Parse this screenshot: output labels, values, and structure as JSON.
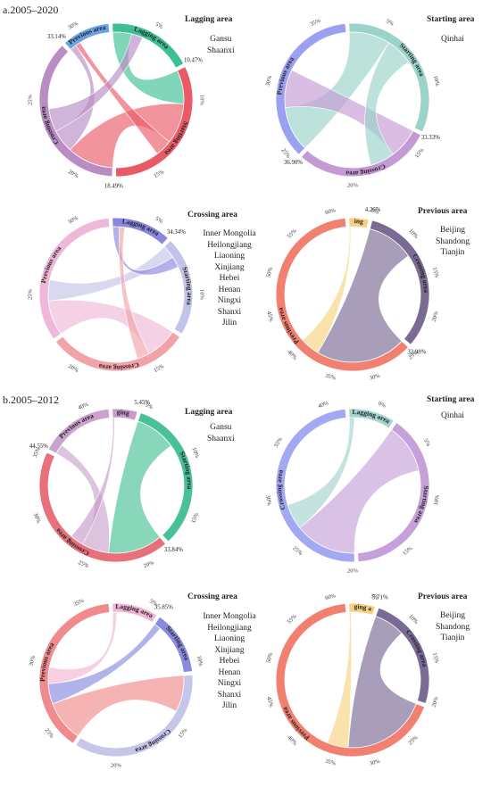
{
  "sections": [
    {
      "label": "a.2005–2020",
      "panels": [
        {
          "title": "Lagging area",
          "regions": [
            "Gansu",
            "Shaanxi"
          ],
          "segments": [
            {
              "name": "Lagging area",
              "share": 0.1849,
              "color": "#3dbf94"
            },
            {
              "name": "Starting area",
              "share": 0.3314,
              "color": "#ea5a66"
            },
            {
              "name": "Crossing area",
              "share": 0.379,
              "color": "#b98cc4"
            },
            {
              "name": "Previous area",
              "share": 0.1047,
              "color": "#6aa3e6"
            }
          ],
          "boundary_labels": [
            "10.47%",
            "18.49%",
            "33.14%"
          ],
          "ticks": [
            "5%",
            "10%",
            "15%",
            "20%",
            "25%",
            "30%"
          ],
          "flows": [
            {
              "from": "Lagging area",
              "to": "Starting area",
              "value": 0.1
            },
            {
              "from": "Starting area",
              "to": "Crossing area",
              "value": 0.12
            },
            {
              "from": "Crossing area",
              "to": "Previous area",
              "value": 0.06
            },
            {
              "from": "Starting area",
              "to": "Previous area",
              "value": 0.05
            },
            {
              "from": "Crossing area",
              "to": "Lagging area",
              "value": 0.06
            }
          ]
        },
        {
          "title": "Starting area",
          "regions": [
            "Qinhai"
          ],
          "segments": [
            {
              "name": "Starting area",
              "share": 0.3333,
              "color": "#9ad3c9"
            },
            {
              "name": "Crossing area",
              "share": 0.2977,
              "color": "#c49ad4"
            },
            {
              "name": "Previous area",
              "share": 0.369,
              "color": "#9aa1f0"
            }
          ],
          "boundary_labels": [
            "33.33%",
            "36.90%"
          ],
          "ticks": [
            "5%",
            "10%",
            "15%",
            "20%",
            "25%",
            "30%",
            "35%"
          ],
          "flows": [
            {
              "from": "Starting area",
              "to": "Previous area",
              "value": 0.12
            },
            {
              "from": "Crossing area",
              "to": "Previous area",
              "value": 0.1
            },
            {
              "from": "Starting area",
              "to": "Crossing area",
              "value": 0.08
            }
          ]
        }
      ]
    },
    {
      "label": "",
      "panels": [
        {
          "title": "Crossing area",
          "regions": [
            "Inner Mongolia",
            "Heilongjiang",
            "Liaoning",
            "Xinjiang",
            "Hebei",
            "Henan",
            "Ningxi",
            "Shanxi",
            "Jilin"
          ],
          "segments": [
            {
              "name": "Lagging area",
              "share": 0.1303,
              "color": "#8a86de"
            },
            {
              "name": "Starting area",
              "share": 0.2167,
              "color": "#c3c3ea"
            },
            {
              "name": "Crossing area",
              "share": 0.3096,
              "color": "#f1a3a8"
            },
            {
              "name": "Previous area",
              "share": 0.3434,
              "color": "#efb8d8"
            }
          ],
          "boundary_labels": [
            "34.34%"
          ],
          "ticks": [
            "5%",
            "10%",
            "15%",
            "20%",
            "25%",
            "30%"
          ],
          "flows": [
            {
              "from": "Previous area",
              "to": "Crossing area",
              "value": 0.1
            },
            {
              "from": "Starting area",
              "to": "Previous area",
              "value": 0.06
            },
            {
              "from": "Lagging area",
              "to": "Starting area",
              "value": 0.05
            },
            {
              "from": "Crossing area",
              "to": "Lagging area",
              "value": 0.04
            }
          ]
        },
        {
          "title": "Previous area",
          "regions": [
            "Beijing",
            "Shandong",
            "Tianjin"
          ],
          "segments": [
            {
              "name": "Lagging area",
              "share": 0.0426,
              "color": "#f6d27e"
            },
            {
              "name": "Crossing area",
              "share": 0.3298,
              "color": "#7a6a94"
            },
            {
              "name": "Previous area",
              "share": 0.6276,
              "color": "#f28070"
            }
          ],
          "boundary_labels": [
            "4.26%",
            "32.98%"
          ],
          "ticks": [
            "5%",
            "10%",
            "15%",
            "20%",
            "25%",
            "30%",
            "35%",
            "40%",
            "45%",
            "50%",
            "55%",
            "60%"
          ],
          "flows": [
            {
              "from": "Crossing area",
              "to": "Previous area",
              "value": 0.14
            },
            {
              "from": "Lagging area",
              "to": "Previous area",
              "value": 0.03
            }
          ]
        }
      ]
    },
    {
      "label": "b.2005–2012",
      "panels": [
        {
          "title": "Lagging area",
          "regions": [
            "Gansu",
            "Shaanxi"
          ],
          "segments": [
            {
              "name": "Lagging area",
              "share": 0.0545,
              "color": "#c79ac9"
            },
            {
              "name": "Starting area",
              "share": 0.3384,
              "color": "#49c196"
            },
            {
              "name": "Crossing area",
              "share": 0.4455,
              "color": "#e8707a"
            },
            {
              "name": "Previous area",
              "share": 0.1616,
              "color": "#c9a3cc"
            }
          ],
          "boundary_labels": [
            "5.45%",
            "33.84%",
            "44.55%"
          ],
          "ticks": [
            "5%",
            "10%",
            "15%",
            "20%",
            "25%",
            "30%",
            "35%",
            "40%"
          ],
          "flows": [
            {
              "from": "Starting area",
              "to": "Crossing area",
              "value": 0.12
            },
            {
              "from": "Previous area",
              "to": "Crossing area",
              "value": 0.06
            },
            {
              "from": "Lagging area",
              "to": "Crossing area",
              "value": 0.03
            }
          ]
        },
        {
          "title": "Starting area",
          "regions": [
            "Qinhai"
          ],
          "segments": [
            {
              "name": "Lagging area",
              "share": 0.1,
              "color": "#a5d4cf"
            },
            {
              "name": "Starting area",
              "share": 0.4,
              "color": "#c6a0d8"
            },
            {
              "name": "Crossing area",
              "share": 0.5,
              "color": "#a2a9f2"
            }
          ],
          "boundary_labels": [],
          "ticks": [
            "0%",
            "5%",
            "10%",
            "15%",
            "20%",
            "25%",
            "30%",
            "35%",
            "40%"
          ],
          "flows": [
            {
              "from": "Starting area",
              "to": "Crossing area",
              "value": 0.12
            },
            {
              "from": "Lagging area",
              "to": "Crossing area",
              "value": 0.05
            }
          ]
        }
      ]
    },
    {
      "label": "",
      "panels": [
        {
          "title": "Crossing area",
          "regions": [
            "Inner Mongolia",
            "Heilongjiang",
            "Liaoning",
            "Xinjiang",
            "Hebei",
            "Henan",
            "Ningxi",
            "Shanxi",
            "Jilin"
          ],
          "segments": [
            {
              "name": "Lagging area",
              "share": 0.1,
              "color": "#f2b3d4"
            },
            {
              "name": "Starting area",
              "share": 0.14,
              "color": "#8a8ae0"
            },
            {
              "name": "Crossing area",
              "share": 0.3585,
              "color": "#c6c6ea"
            },
            {
              "name": "Previous area",
              "share": 0.4015,
              "color": "#f08a8c"
            }
          ],
          "boundary_labels": [
            "35.85%"
          ],
          "ticks": [
            "5%",
            "10%",
            "15%",
            "20%",
            "25%",
            "30%",
            "35%"
          ],
          "flows": [
            {
              "from": "Previous area",
              "to": "Crossing area",
              "value": 0.1
            },
            {
              "from": "Starting area",
              "to": "Previous area",
              "value": 0.05
            },
            {
              "from": "Lagging area",
              "to": "Previous area",
              "value": 0.04
            }
          ]
        },
        {
          "title": "Previous area",
          "regions": [
            "Beijing",
            "Shandong",
            "Tianjin"
          ],
          "segments": [
            {
              "name": "Lagging area",
              "share": 0.0571,
              "color": "#f6d27e"
            },
            {
              "name": "Crossing area",
              "share": 0.25,
              "color": "#7a6a94"
            },
            {
              "name": "Previous area",
              "share": 0.6929,
              "color": "#f28070"
            }
          ],
          "boundary_labels": [
            "5.71%"
          ],
          "ticks": [
            "5%",
            "10%",
            "15%",
            "20%",
            "25%",
            "30%",
            "35%",
            "40%",
            "45%",
            "50%",
            "55%",
            "60%"
          ],
          "flows": [
            {
              "from": "Crossing area",
              "to": "Previous area",
              "value": 0.12
            },
            {
              "from": "Lagging area",
              "to": "Previous area",
              "value": 0.03
            }
          ]
        }
      ]
    }
  ]
}
